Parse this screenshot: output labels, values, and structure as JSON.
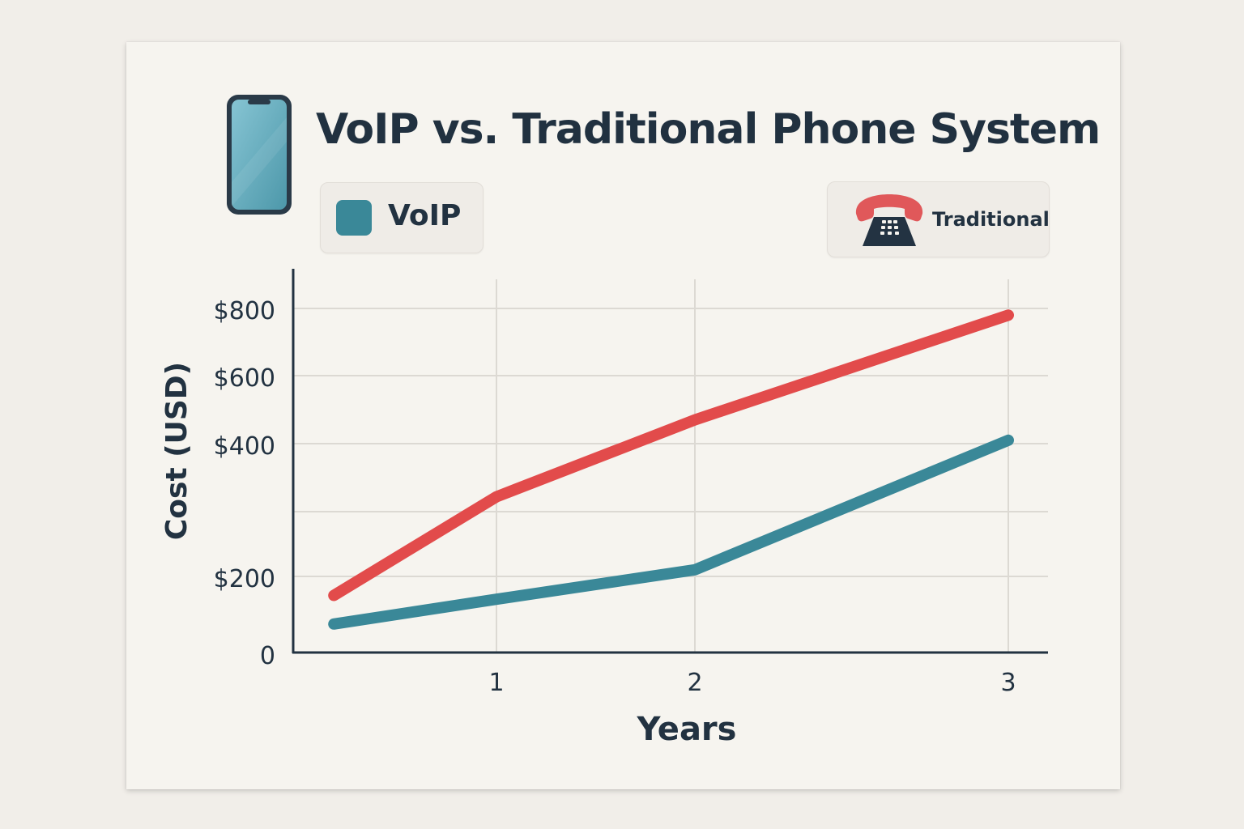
{
  "title": "VoIP vs. Traditional Phone System",
  "legend": {
    "voip_label": "VoIP",
    "traditional_label": "Traditional",
    "voip_icon": "swatch",
    "traditional_icon": "telephone-icon"
  },
  "header_icon": "smartphone-icon",
  "colors": {
    "voip": "#3a8898",
    "traditional": "#e24b4b",
    "axis": "#223241",
    "grid": "#dcd9d3"
  },
  "chart_data": {
    "type": "line",
    "title": "VoIP vs. Traditional Phone System",
    "xlabel": "Years",
    "ylabel": "Cost (USD)",
    "x_ticks": [
      "1",
      "2",
      "3"
    ],
    "y_ticks": [
      "0",
      "$200",
      "$400",
      "$600",
      "$800"
    ],
    "y_tick_values": [
      0,
      200,
      400,
      600,
      800
    ],
    "ylim": [
      0,
      800
    ],
    "xlim": [
      0,
      3
    ],
    "grid": true,
    "series": [
      {
        "name": "Traditional",
        "color": "#e24b4b",
        "x": [
          0.2,
          1,
          2,
          3
        ],
        "y": [
          150,
          320,
          470,
          780
        ]
      },
      {
        "name": "VoIP",
        "color": "#3a8898",
        "x": [
          0.2,
          1,
          2,
          3
        ],
        "y": [
          75,
          140,
          210,
          410
        ]
      }
    ]
  }
}
